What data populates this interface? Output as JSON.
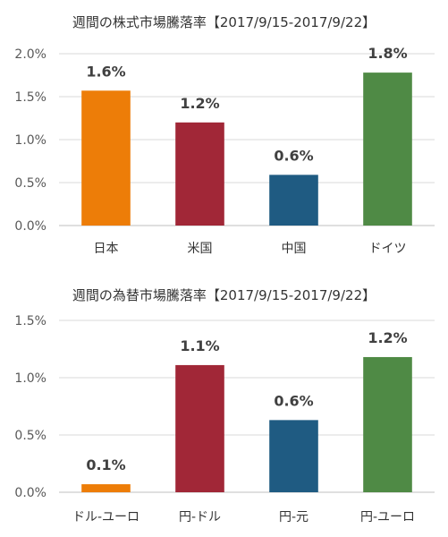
{
  "chart_data": [
    {
      "type": "bar",
      "title": "週間の株式市場騰落率【2017/9/15-2017/9/22】",
      "categories": [
        "日本",
        "米国",
        "中国",
        "ドイツ"
      ],
      "values": [
        1.57,
        1.2,
        0.59,
        1.78
      ],
      "data_labels": [
        "1.6%",
        "1.2%",
        "0.6%",
        "1.8%"
      ],
      "colors": [
        "#ED7D08",
        "#A12737",
        "#1F5B82",
        "#4F8A45"
      ],
      "yticks": [
        0,
        0.5,
        1.0,
        1.5,
        2.0
      ],
      "ytick_labels": [
        "0.0%",
        "0.5%",
        "1.0%",
        "1.5%",
        "2.0%"
      ],
      "ylim": [
        0,
        2.0
      ],
      "grid": true
    },
    {
      "type": "bar",
      "title": "週間の為替市場騰落率【2017/9/15-2017/9/22】",
      "categories": [
        "ドル-ユーロ",
        "円-ドル",
        "円-元",
        "円-ユーロ"
      ],
      "values": [
        0.07,
        1.11,
        0.63,
        1.18
      ],
      "data_labels": [
        "0.1%",
        "1.1%",
        "0.6%",
        "1.2%"
      ],
      "colors": [
        "#ED7D08",
        "#A12737",
        "#1F5B82",
        "#4F8A45"
      ],
      "yticks": [
        0,
        0.5,
        1.0,
        1.5
      ],
      "ytick_labels": [
        "0.0%",
        "0.5%",
        "1.0%",
        "1.5%"
      ],
      "ylim": [
        0,
        1.5
      ],
      "grid": true
    }
  ]
}
